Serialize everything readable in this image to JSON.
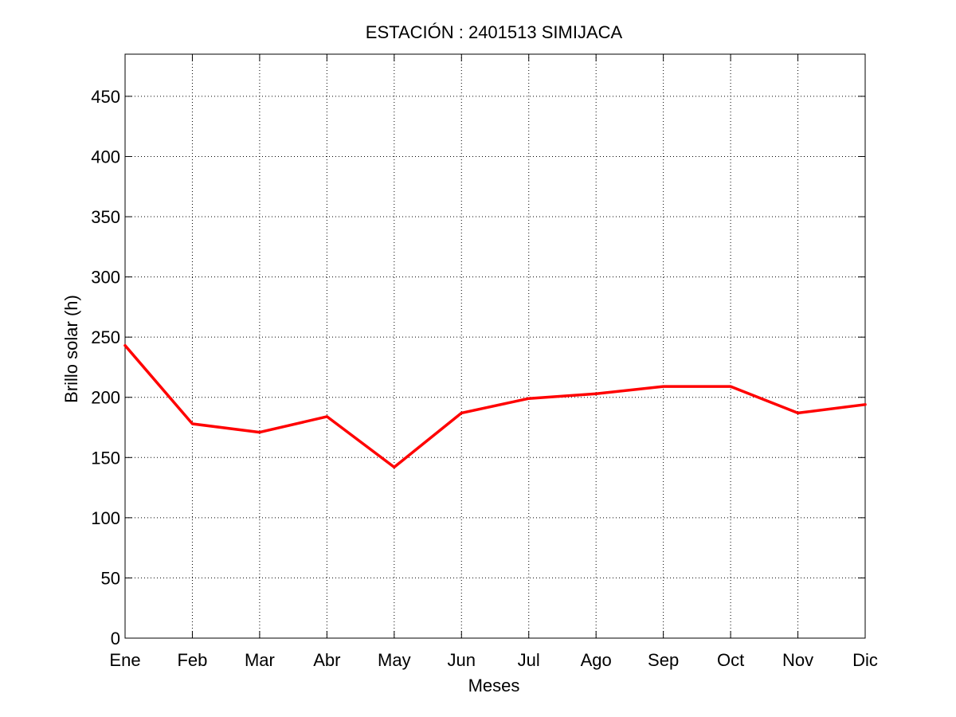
{
  "chart_data": {
    "type": "line",
    "title": "ESTACIÓN :  2401513  SIMIJACA",
    "xlabel": "Meses",
    "ylabel": "Brillo solar (h)",
    "categories": [
      "Ene",
      "Feb",
      "Mar",
      "Abr",
      "May",
      "Jun",
      "Jul",
      "Ago",
      "Sep",
      "Oct",
      "Nov",
      "Dic"
    ],
    "series": [
      {
        "values": [
          243,
          178,
          171,
          184,
          142,
          187,
          199,
          203,
          209,
          209,
          187,
          194
        ],
        "color": "#ff0000"
      }
    ],
    "ylim": [
      0,
      485
    ],
    "yticks": [
      0,
      50,
      100,
      150,
      200,
      250,
      300,
      350,
      400,
      450
    ],
    "grid": true,
    "grid_style": "dotted"
  }
}
